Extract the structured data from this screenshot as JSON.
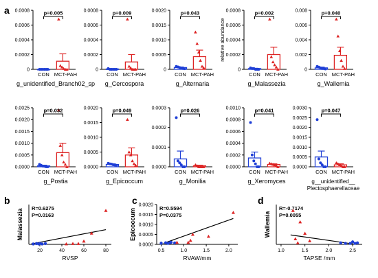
{
  "figure": {
    "panel_letters": [
      "a",
      "b",
      "c",
      "d"
    ],
    "group_labels": [
      "CON",
      "MCT-PAH"
    ],
    "colors": {
      "con": "#1f3fd6",
      "pah": "#dd2222",
      "axis": "#000000"
    }
  },
  "chart_data": [
    {
      "id": "a1",
      "type": "bar",
      "title": "g_unidentified_Branch02_sp",
      "ylabel": "",
      "ylim": [
        0,
        0.0008
      ],
      "yticks": [
        "0",
        "0.0002",
        "0.0004",
        "0.0006",
        "0.0008"
      ],
      "pvalue": "p=0.005",
      "categories": [
        "CON",
        "MCT-PAH"
      ],
      "series": [
        {
          "mean": 0.0,
          "sem": 0.0,
          "points": [
            0,
            0,
            0,
            0,
            0,
            0
          ]
        },
        {
          "mean": 0.00011,
          "sem": 0.0001,
          "points": [
            0.00068,
            5e-05,
            3e-05,
            1e-05,
            0,
            0
          ]
        }
      ]
    },
    {
      "id": "a2",
      "type": "bar",
      "title": "g_Cercospora",
      "ylabel": "",
      "ylim": [
        0,
        0.0008
      ],
      "yticks": [
        "0",
        "0.0002",
        "0.0004",
        "0.0006",
        "0.0008"
      ],
      "pvalue": "p=0.009",
      "categories": [
        "CON",
        "MCT-PAH"
      ],
      "series": [
        {
          "mean": 5e-06,
          "sem": 5e-06,
          "points": [
            1e-05,
            0,
            0,
            0,
            0,
            0
          ]
        },
        {
          "mean": 0.0001,
          "sem": 0.0001,
          "points": [
            0.00068,
            4e-05,
            2e-05,
            0,
            0,
            0
          ]
        }
      ]
    },
    {
      "id": "a3",
      "type": "bar",
      "title": "g_Alternaria",
      "ylabel": "",
      "ylim": [
        0,
        0.002
      ],
      "yticks": [
        "0",
        "0.0005",
        "0.0010",
        "0.0015",
        "0.0020"
      ],
      "pvalue": "p=0.043",
      "categories": [
        "CON",
        "MCT-PAH"
      ],
      "series": [
        {
          "mean": 6e-05,
          "sem": 2e-05,
          "points": [
            0.0001,
            8e-05,
            6e-05,
            4e-05,
            3e-05,
            2e-05
          ]
        },
        {
          "mean": 0.00043,
          "sem": 0.00022,
          "points": [
            0.00126,
            0.00087,
            0.00058,
            0.0003,
            0.0001,
            5e-05
          ]
        }
      ]
    },
    {
      "id": "a4",
      "type": "bar",
      "title": "g_Malassezia",
      "ylabel": "relative abundance",
      "ylim": [
        0,
        0.0008
      ],
      "yticks": [
        "0",
        "0.0002",
        "0.0004",
        "0.0006",
        "0.0008"
      ],
      "pvalue": "p=0.002",
      "categories": [
        "CON",
        "MCT-PAH"
      ],
      "series": [
        {
          "mean": 1e-05,
          "sem": 5e-06,
          "points": [
            2e-05,
            1e-05,
            1e-05,
            0,
            0,
            0
          ]
        },
        {
          "mean": 0.0002,
          "sem": 0.0001,
          "points": [
            0.00068,
            0.00017,
            0.0001,
            6e-05,
            3e-05,
            0
          ]
        }
      ]
    },
    {
      "id": "a5",
      "type": "bar",
      "title": "g_Wallemia",
      "ylabel": "",
      "ylim": [
        0,
        0.008
      ],
      "yticks": [
        "0",
        "0.002",
        "0.004",
        "0.006",
        "0.008"
      ],
      "pvalue": "p=0.040",
      "categories": [
        "CON",
        "MCT-PAH"
      ],
      "series": [
        {
          "mean": 0.0002,
          "sem": 0.0001,
          "points": [
            0.0004,
            0.0003,
            0.0002,
            0.0001,
            0.0001,
            5e-05
          ]
        },
        {
          "mean": 0.0019,
          "sem": 0.0011,
          "points": [
            0.0068,
            0.0045,
            0.0025,
            0.0012,
            0.0004,
            0.0001
          ]
        }
      ]
    },
    {
      "id": "a6",
      "type": "bar",
      "title": "g_Postia",
      "ylabel": "",
      "ylim": [
        0,
        0.0025
      ],
      "yticks": [
        "0.0000",
        "0.0005",
        "0.0010",
        "0.0015",
        "0.0020",
        "0.0025"
      ],
      "pvalue": "p=0.032",
      "categories": [
        "CON",
        "MCT-PAH"
      ],
      "series": [
        {
          "mean": 4e-05,
          "sem": 3e-05,
          "points": [
            0.0001,
            6e-05,
            3e-05,
            2e-05,
            0,
            0
          ]
        },
        {
          "mean": 0.0006,
          "sem": 0.0004,
          "points": [
            0.0024,
            0.0009,
            0.0005,
            0.0002,
            0.0001,
            0
          ]
        }
      ]
    },
    {
      "id": "a7",
      "type": "bar",
      "title": "g_Epicoccum",
      "ylabel": "",
      "ylim": [
        0,
        0.002
      ],
      "yticks": [
        "0.0000",
        "0.0005",
        "0.0010",
        "0.0015",
        "0.0020"
      ],
      "pvalue": "p=0.049",
      "categories": [
        "CON",
        "MCT-PAH"
      ],
      "series": [
        {
          "mean": 8e-05,
          "sem": 2e-05,
          "points": [
            0.00012,
            0.0001,
            9e-05,
            7e-05,
            6e-05,
            5e-05
          ]
        },
        {
          "mean": 0.0004,
          "sem": 0.00024,
          "points": [
            0.0016,
            0.0005,
            0.0004,
            0.0002,
            0.0001,
            5e-05
          ]
        }
      ]
    },
    {
      "id": "a8",
      "type": "bar",
      "title": "g_Monilia",
      "ylabel": "",
      "ylim": [
        0,
        0.0003
      ],
      "yticks": [
        "0.0000",
        "0.0001",
        "0.0002",
        "0.0003"
      ],
      "pvalue": "p=0.026",
      "categories": [
        "CON",
        "MCT-PAH"
      ],
      "series": [
        {
          "mean": 4e-05,
          "sem": 4e-05,
          "points": [
            0.00025,
            3e-05,
            2e-05,
            1e-05,
            0,
            0
          ]
        },
        {
          "mean": 5e-06,
          "sem": 3e-06,
          "points": [
            1e-05,
            5e-06,
            0,
            0,
            0,
            0
          ]
        }
      ]
    },
    {
      "id": "a9",
      "type": "bar",
      "title": "g_Xeromyces",
      "ylabel": "",
      "ylim": [
        0,
        0.001
      ],
      "yticks": [
        "0.0000",
        "0.0002",
        "0.0004",
        "0.0006",
        "0.0008",
        "0.0010"
      ],
      "pvalue": "p=0.041",
      "categories": [
        "CON",
        "MCT-PAH"
      ],
      "series": [
        {
          "mean": 0.00015,
          "sem": 0.0001,
          "points": [
            0.00075,
            0.0002,
            0.0001,
            5e-05,
            0,
            0
          ]
        },
        {
          "mean": 4e-05,
          "sem": 1e-05,
          "points": [
            6e-05,
            5e-05,
            4e-05,
            3e-05,
            2e-05,
            0
          ]
        }
      ]
    },
    {
      "id": "a10",
      "type": "bar",
      "title": "g__unidentified__\nPlectosphaerellaceae",
      "ylabel": "",
      "ylim": [
        0,
        0.003
      ],
      "yticks": [
        "0.0000",
        "0.0005",
        "0.0010",
        "0.0015",
        "0.0020",
        "0.0025",
        "0.0030"
      ],
      "pvalue": "p=0.047",
      "categories": [
        "CON",
        "MCT-PAH"
      ],
      "series": [
        {
          "mean": 0.0005,
          "sem": 0.0003,
          "points": [
            0.0024,
            0.0004,
            0.0002,
            0.0001,
            0,
            0
          ]
        },
        {
          "mean": 0.0001,
          "sem": 5e-05,
          "points": [
            0.0002,
            0.00015,
            0.0001,
            5e-05,
            0,
            0
          ]
        }
      ]
    },
    {
      "id": "b",
      "type": "scatter",
      "xlabel": "RVSP",
      "ylabel": "Malassezia",
      "xlim": [
        10,
        85
      ],
      "ylim": [
        0,
        0.01
      ],
      "xticks": [
        20,
        40,
        60,
        80
      ],
      "stats": [
        "R=0.6275",
        "P=0.0163"
      ],
      "fit": [
        [
          12,
          0.0001
        ],
        [
          80,
          0.0037
        ]
      ],
      "series": [
        {
          "group": "CON",
          "points": [
            [
              14,
              0.0001
            ],
            [
              17,
              0.0002
            ],
            [
              19,
              0.0001
            ],
            [
              20,
              0.0002
            ],
            [
              22,
              0.0001
            ],
            [
              25,
              0.0002
            ]
          ]
        },
        {
          "group": "MCT-PAH",
          "points": [
            [
              44,
              0.0001
            ],
            [
              50,
              0.0002
            ],
            [
              55,
              0.0002
            ],
            [
              60,
              0.0008
            ],
            [
              67,
              0.0028
            ],
            [
              80,
              0.0085
            ]
          ]
        }
      ]
    },
    {
      "id": "c",
      "type": "scatter",
      "xlabel": "RVAW/mm",
      "ylabel": "Epicoccum",
      "xlim": [
        0.4,
        2.2
      ],
      "ylim": [
        0,
        0.002
      ],
      "xticks": [
        0.5,
        1.0,
        1.5,
        2.0
      ],
      "xticklabels": [
        "0.5",
        "1.0",
        "1.5",
        "2.0"
      ],
      "yticks": [
        "0.0000",
        "0.0005",
        "0.0010",
        "0.0015",
        "0.0020"
      ],
      "stats": [
        "R=0.5594",
        "P=0.0375"
      ],
      "fit": [
        [
          0.55,
          5e-05
        ],
        [
          2.1,
          0.0013
        ]
      ],
      "series": [
        {
          "group": "CON",
          "points": [
            [
              0.5,
              6e-05
            ],
            [
              0.6,
              8e-05
            ],
            [
              0.65,
              5e-05
            ],
            [
              0.7,
              9e-05
            ],
            [
              0.72,
              0.0001
            ],
            [
              0.8,
              7e-05
            ]
          ]
        },
        {
          "group": "MCT-PAH",
          "points": [
            [
              0.85,
              0.0001
            ],
            [
              1.1,
              0.0001
            ],
            [
              1.15,
              0.0002
            ],
            [
              1.2,
              0.0005
            ],
            [
              1.55,
              0.0004
            ],
            [
              2.1,
              0.0016
            ]
          ]
        }
      ]
    },
    {
      "id": "d",
      "type": "scatter",
      "xlabel": "TAPSE /mm",
      "ylabel": "Wallemia",
      "xlim": [
        0.9,
        2.7
      ],
      "ylim": [
        0,
        0.008
      ],
      "xticks": [
        1.0,
        1.5,
        2.0,
        2.5
      ],
      "xticklabels": [
        "1.0",
        "1.5",
        "2.0",
        "2.5"
      ],
      "stats": [
        "R=-0.7174",
        "P=0.0055"
      ],
      "fit": [
        [
          1.2,
          0.0019
        ],
        [
          2.5,
          0.0001
        ]
      ],
      "series": [
        {
          "group": "CON",
          "points": [
            [
              2.25,
              0.0003
            ],
            [
              2.35,
              0.0002
            ],
            [
              2.45,
              0.0002
            ],
            [
              2.5,
              0.0005
            ],
            [
              2.55,
              0.0002
            ],
            [
              2.6,
              0.0003
            ]
          ]
        },
        {
          "group": "MCT-PAH",
          "points": [
            [
              1.25,
              0.0068
            ],
            [
              1.4,
              0.0045
            ],
            [
              1.5,
              0.0022
            ],
            [
              1.3,
              0.0011
            ],
            [
              1.6,
              0.0007
            ],
            [
              1.35,
              0.0003
            ]
          ]
        }
      ]
    }
  ]
}
